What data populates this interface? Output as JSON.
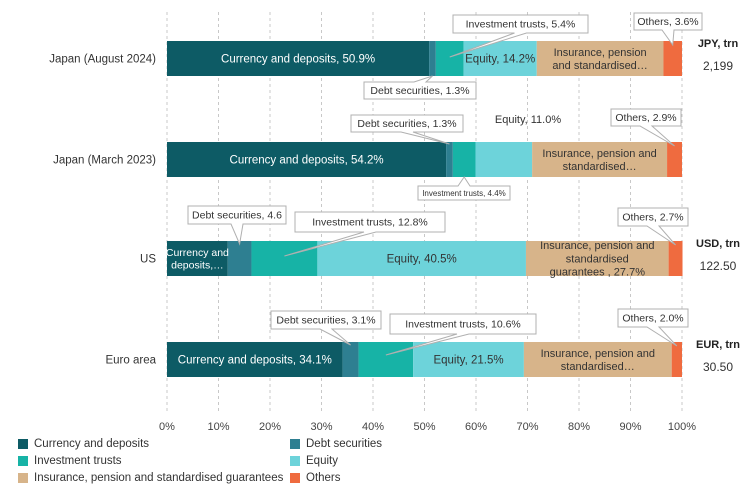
{
  "chart_data": {
    "type": "bar",
    "orientation": "horizontal-stacked",
    "categories": [
      "Japan (August 2024)",
      "Japan (March 2023)",
      "US",
      "Euro area"
    ],
    "xlim": [
      0,
      100
    ],
    "x_ticks": [
      "0%",
      "10%",
      "20%",
      "30%",
      "40%",
      "50%",
      "60%",
      "70%",
      "80%",
      "90%",
      "100%"
    ],
    "grid": "vertical dashed",
    "series": [
      {
        "name": "Currency and deposits",
        "color": "#0d5b65",
        "values": [
          50.9,
          54.2,
          11.8,
          34.1
        ]
      },
      {
        "name": "Debt securities",
        "color": "#2e7f91",
        "values": [
          1.3,
          1.3,
          4.6,
          3.1
        ]
      },
      {
        "name": "Investment trusts",
        "color": "#17b3a6",
        "values": [
          5.4,
          4.4,
          12.8,
          10.6
        ]
      },
      {
        "name": "Equity",
        "color": "#6dd3da",
        "values": [
          14.2,
          11.0,
          40.5,
          21.5
        ]
      },
      {
        "name": "Insurance, pension and standardised guarantees",
        "color": "#d7b48a",
        "values": [
          24.6,
          26.2,
          27.7,
          28.7
        ]
      },
      {
        "name": "Others",
        "color": "#ef6b3f",
        "values": [
          3.6,
          2.9,
          2.7,
          2.0
        ]
      }
    ],
    "labels": [
      [
        "Currency and deposits, 50.9%",
        "Debt securities, 1.3%",
        "Investment trusts, 5.4%",
        "Equity, 14.2%",
        "Insurance, pension and standardised…",
        "Others, 3.6%"
      ],
      [
        "Currency and deposits, 54.2%",
        "Debt securities, 1.3%",
        "Investment trusts, 4.4%",
        "Equity, 11.0%",
        "Insurance, pension and standardised…",
        "Others, 2.9%"
      ],
      [
        "Currency and deposits,…",
        "Debt securities, 4.6",
        "Investment trusts, 12.8%",
        "Equity, 40.5%",
        "Insurance, pension and standardised guarantees , 27.7%",
        "Others, 2.7%"
      ],
      [
        "Currency and deposits, 34.1%",
        "Debt securities, 3.1%",
        "Investment trusts, 10.6%",
        "Equity, 21.5%",
        "Insurance, pension and standardised…",
        "Others, 2.0%"
      ]
    ],
    "totals": [
      {
        "unit": "JPY, trn",
        "value": "2,199"
      },
      null,
      {
        "unit": "USD, trn",
        "value": "122.50"
      },
      {
        "unit": "EUR, trn",
        "value": "30.50"
      }
    ]
  }
}
